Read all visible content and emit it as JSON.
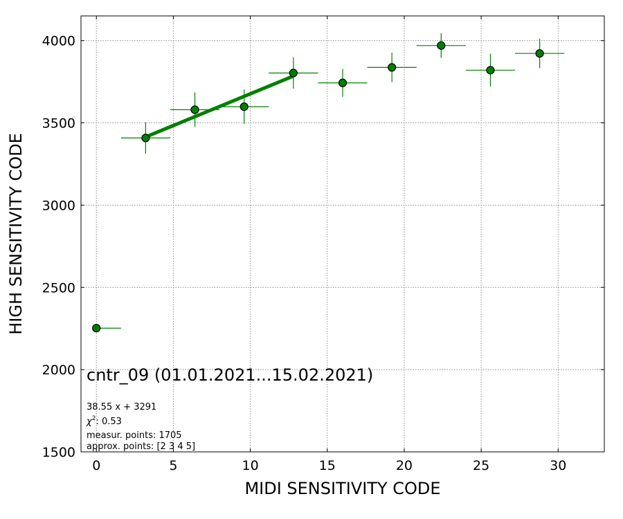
{
  "chart_data": {
    "type": "scatter",
    "title": "cntr_09 (01.01.2021...15.02.2021)",
    "xlabel": "MIDI SENSITIVITY CODE",
    "ylabel": "HIGH SENSITIVITY CODE",
    "xlim": [
      -1,
      33
    ],
    "ylim": [
      1500,
      4150
    ],
    "xticks": [
      0,
      5,
      10,
      15,
      20,
      25,
      30
    ],
    "yticks": [
      1500,
      2000,
      2500,
      3000,
      3500,
      4000
    ],
    "grid": true,
    "series": [
      {
        "marker_color": "#008000",
        "points": [
          {
            "x": 0,
            "y": 2252,
            "xerr": [
              0,
              1.6
            ],
            "yerr": 0
          },
          {
            "x": 3.2,
            "y": 3408,
            "xerr": [
              1.6,
              1.6
            ],
            "yerr": 95
          },
          {
            "x": 6.4,
            "y": 3580,
            "xerr": [
              1.6,
              1.6
            ],
            "yerr": 105
          },
          {
            "x": 9.6,
            "y": 3598,
            "xerr": [
              1.6,
              1.6
            ],
            "yerr": 105
          },
          {
            "x": 12.8,
            "y": 3803,
            "xerr": [
              1.6,
              1.6
            ],
            "yerr": 95
          },
          {
            "x": 16.0,
            "y": 3743,
            "xerr": [
              1.6,
              1.6
            ],
            "yerr": 85
          },
          {
            "x": 19.2,
            "y": 3837,
            "xerr": [
              1.6,
              1.6
            ],
            "yerr": 90
          },
          {
            "x": 22.4,
            "y": 3970,
            "xerr": [
              1.6,
              1.6
            ],
            "yerr": 75
          },
          {
            "x": 25.6,
            "y": 3820,
            "xerr": [
              1.6,
              1.6
            ],
            "yerr": 100
          },
          {
            "x": 28.8,
            "y": 3922,
            "xerr": [
              1.6,
              1.6
            ],
            "yerr": 90
          }
        ]
      }
    ],
    "fit_line": {
      "slope": 38.55,
      "intercept": 3291,
      "x_range": [
        3.2,
        12.8
      ],
      "color": "#008000"
    },
    "annotations": {
      "equation": "38.55 x + 3291",
      "chi2_symbol": "χ",
      "chi2_value": ": 0.53",
      "measur_points": "measur. points: 1705",
      "approx_points": "approx. points: [2 3 4 5]"
    }
  }
}
